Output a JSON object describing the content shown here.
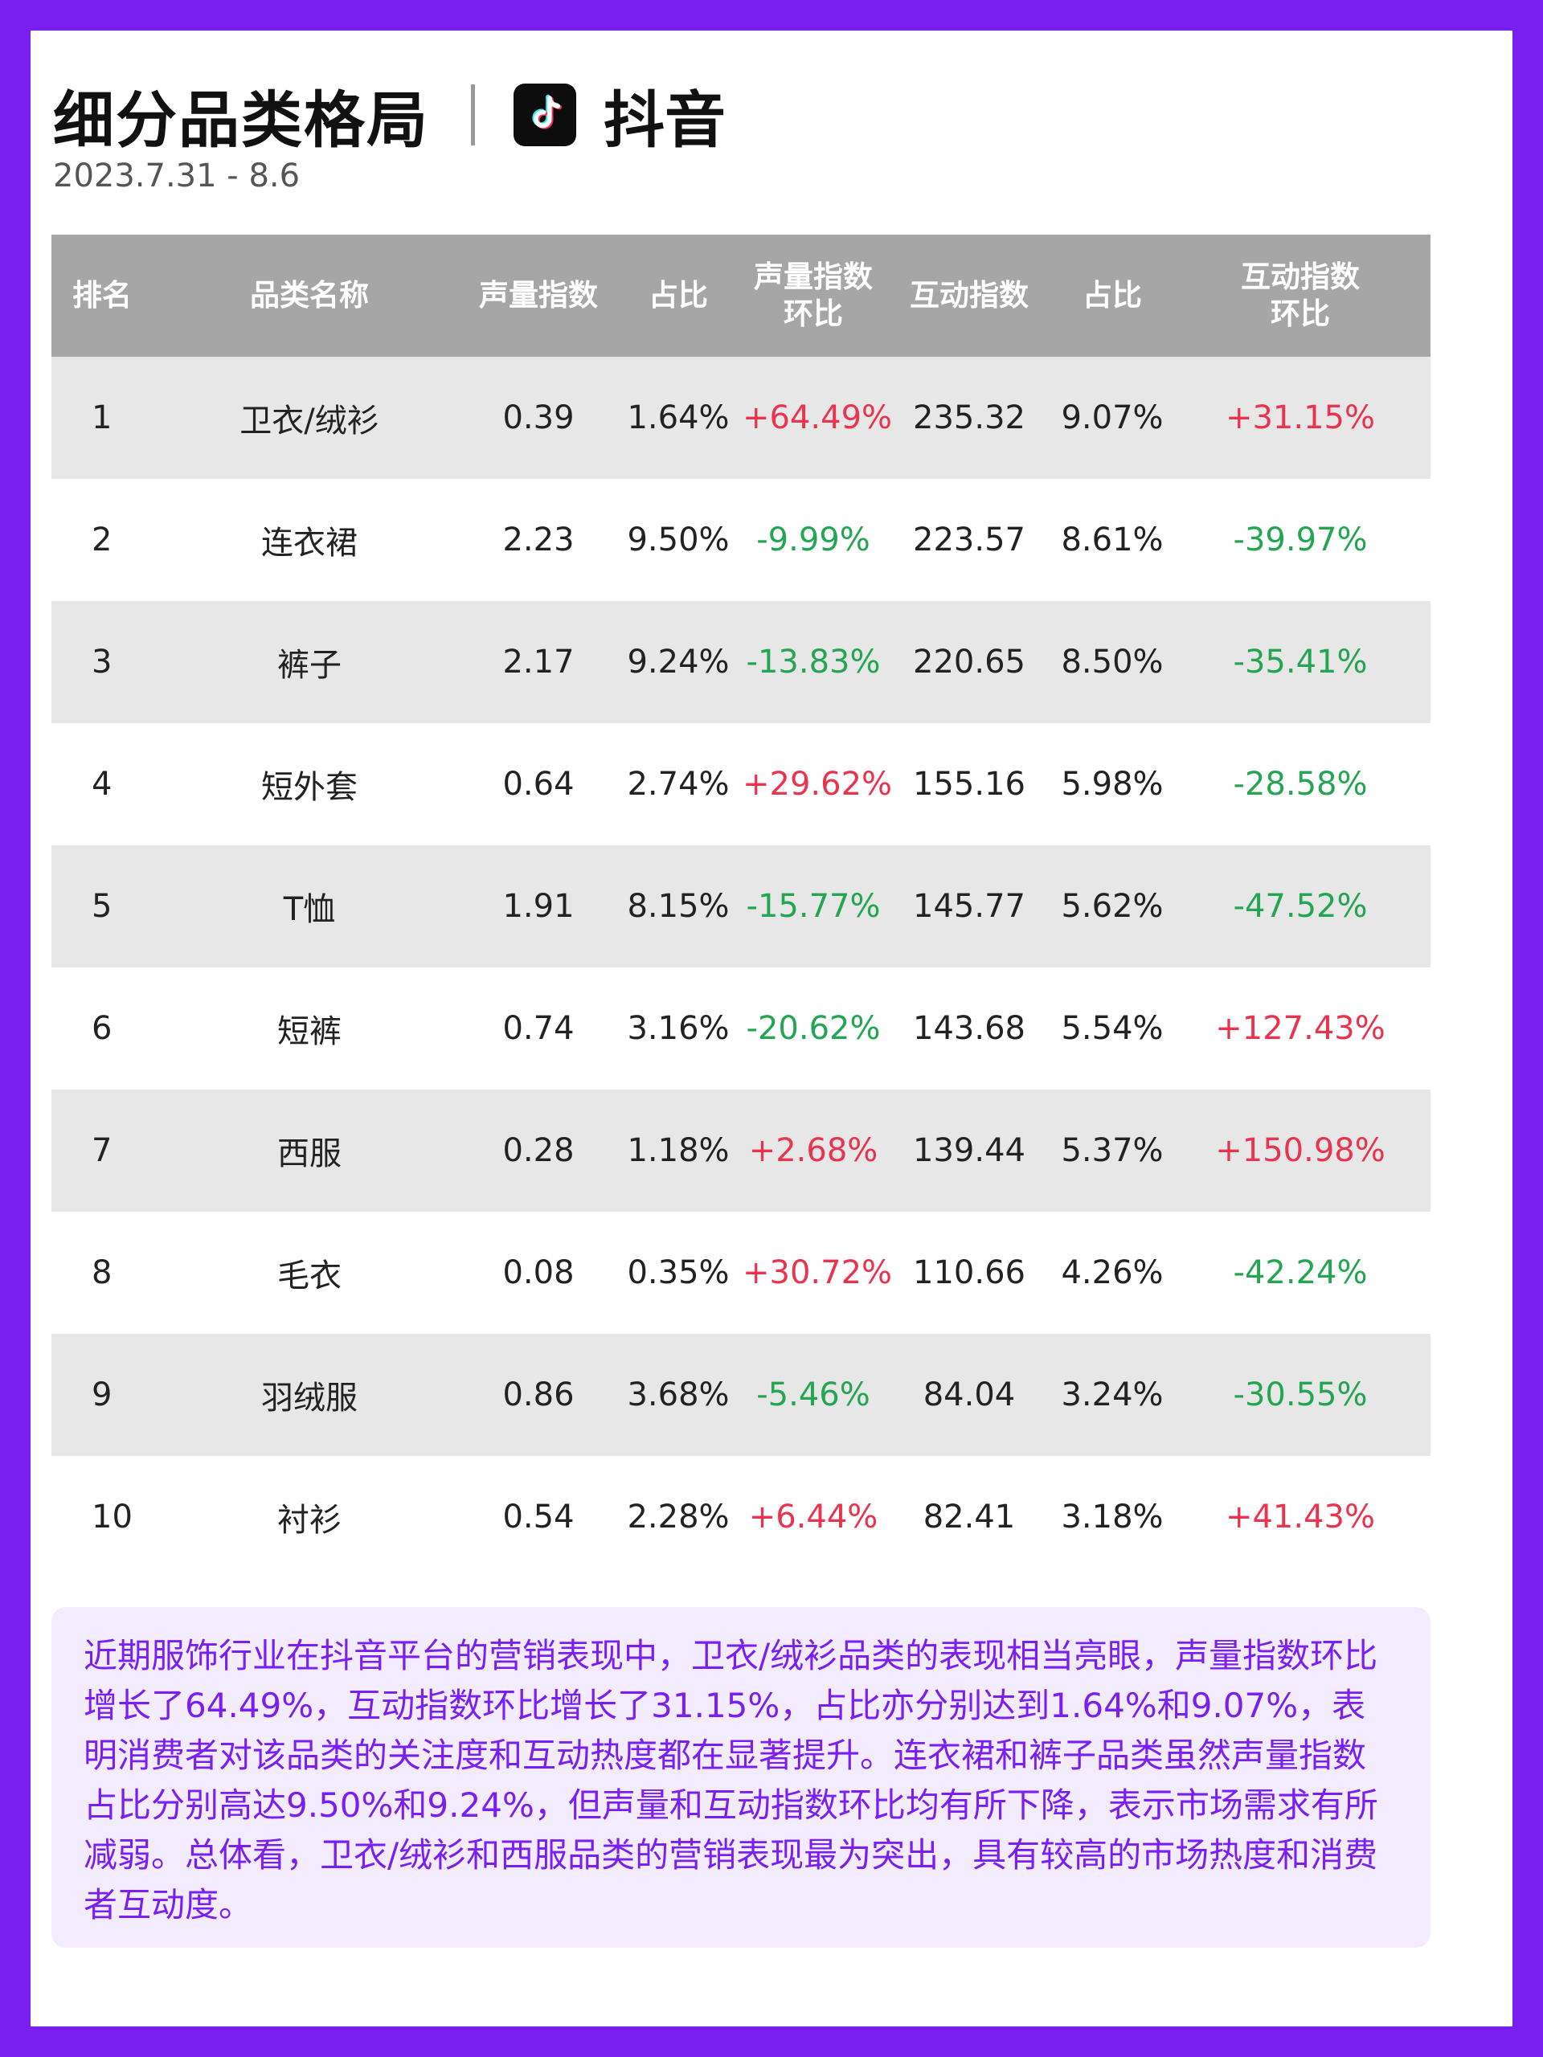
{
  "header": {
    "title": "细分品类格局",
    "brand": "抖音",
    "logo_icon": "tiktok-logo-icon",
    "date": "2023.7.31 - 8.6"
  },
  "colors": {
    "frame": "#7a1ff2",
    "header_bg": "#a6a6a6",
    "positive": "#e8344f",
    "negative": "#23a552",
    "summary_bg": "#f3ecff"
  },
  "table": {
    "headers": [
      "排名",
      "品类名称",
      "声量指数",
      "占比",
      "声量指数\n环比",
      "互动指数",
      "占比",
      "互动指数\n环比"
    ],
    "rows": [
      {
        "rank": "1",
        "name": "卫衣/绒衫",
        "voice": "0.39",
        "voice_share": "1.64%",
        "voice_mom": "+64.49%",
        "inter": "235.32",
        "inter_share": "9.07%",
        "inter_mom": "+31.15%"
      },
      {
        "rank": "2",
        "name": "连衣裙",
        "voice": "2.23",
        "voice_share": "9.50%",
        "voice_mom": "-9.99%",
        "inter": "223.57",
        "inter_share": "8.61%",
        "inter_mom": "-39.97%"
      },
      {
        "rank": "3",
        "name": "裤子",
        "voice": "2.17",
        "voice_share": "9.24%",
        "voice_mom": "-13.83%",
        "inter": "220.65",
        "inter_share": "8.50%",
        "inter_mom": "-35.41%"
      },
      {
        "rank": "4",
        "name": "短外套",
        "voice": "0.64",
        "voice_share": "2.74%",
        "voice_mom": "+29.62%",
        "inter": "155.16",
        "inter_share": "5.98%",
        "inter_mom": "-28.58%"
      },
      {
        "rank": "5",
        "name": "T恤",
        "voice": "1.91",
        "voice_share": "8.15%",
        "voice_mom": "-15.77%",
        "inter": "145.77",
        "inter_share": "5.62%",
        "inter_mom": "-47.52%"
      },
      {
        "rank": "6",
        "name": "短裤",
        "voice": "0.74",
        "voice_share": "3.16%",
        "voice_mom": "-20.62%",
        "inter": "143.68",
        "inter_share": "5.54%",
        "inter_mom": "+127.43%"
      },
      {
        "rank": "7",
        "name": "西服",
        "voice": "0.28",
        "voice_share": "1.18%",
        "voice_mom": "+2.68%",
        "inter": "139.44",
        "inter_share": "5.37%",
        "inter_mom": "+150.98%"
      },
      {
        "rank": "8",
        "name": "毛衣",
        "voice": "0.08",
        "voice_share": "0.35%",
        "voice_mom": "+30.72%",
        "inter": "110.66",
        "inter_share": "4.26%",
        "inter_mom": "-42.24%"
      },
      {
        "rank": "9",
        "name": "羽绒服",
        "voice": "0.86",
        "voice_share": "3.68%",
        "voice_mom": "-5.46%",
        "inter": "84.04",
        "inter_share": "3.24%",
        "inter_mom": "-30.55%"
      },
      {
        "rank": "10",
        "name": "衬衫",
        "voice": "0.54",
        "voice_share": "2.28%",
        "voice_mom": "+6.44%",
        "inter": "82.41",
        "inter_share": "3.18%",
        "inter_mom": "+41.43%"
      }
    ]
  },
  "summary": "近期服饰行业在抖音平台的营销表现中，卫衣/绒衫品类的表现相当亮眼，声量指数环比增长了64.49%，互动指数环比增长了31.15%，占比亦分别达到1.64%和9.07%，表明消费者对该品类的关注度和互动热度都在显著提升。连衣裙和裤子品类虽然声量指数占比分别高达9.50%和9.24%，但声量和互动指数环比均有所下降，表示市场需求有所减弱。总体看，卫衣/绒衫和西服品类的营销表现最为突出，具有较高的市场热度和消费者互动度。"
}
